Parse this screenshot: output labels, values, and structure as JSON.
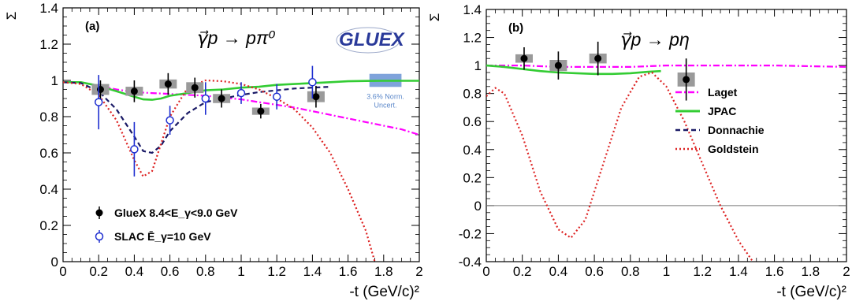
{
  "chart_data": [
    {
      "type": "scatter",
      "panel_label": "(a)",
      "reaction": "γ⃗p → pπ⁰",
      "logo_text": "GLUEX",
      "xlabel": "-t (GeV/c)²",
      "ylabel": "Σ",
      "xlim": [
        0,
        2
      ],
      "ylim": [
        0,
        1.4
      ],
      "x_ticks": [
        "0",
        "0.2",
        "0.4",
        "0.6",
        "0.8",
        "1",
        "1.2",
        "1.4",
        "1.6",
        "1.8",
        "2"
      ],
      "y_ticks": [
        "0",
        "0.2",
        "0.4",
        "0.6",
        "0.8",
        "1",
        "1.2",
        "1.4"
      ],
      "normalization_band": {
        "label_line1": "3.6% Norm.",
        "label_line2": "Uncert.",
        "value": 1.0,
        "uncertainty": 0.036,
        "x_range": [
          1.72,
          1.9
        ],
        "color": "#7fa3db"
      },
      "legend": [
        {
          "label": "GlueX 8.4<E_γ<9.0 GeV",
          "marker": "filled-circle"
        },
        {
          "label": "SLAC Ē_γ=10 GeV",
          "marker": "open-circle"
        }
      ],
      "series": [
        {
          "name": "GlueX 8.4<E_γ<9.0 GeV",
          "kind": "points",
          "marker": "filled",
          "points": [
            {
              "x": 0.21,
              "y": 0.95,
              "err": 0.05,
              "sys": 0.03
            },
            {
              "x": 0.4,
              "y": 0.94,
              "err": 0.06,
              "sys": 0.025
            },
            {
              "x": 0.59,
              "y": 0.98,
              "err": 0.06,
              "sys": 0.025
            },
            {
              "x": 0.74,
              "y": 0.96,
              "err": 0.055,
              "sys": 0.03
            },
            {
              "x": 0.89,
              "y": 0.9,
              "err": 0.05,
              "sys": 0.025
            },
            {
              "x": 1.11,
              "y": 0.83,
              "err": 0.04,
              "sys": 0.02
            },
            {
              "x": 1.42,
              "y": 0.91,
              "err": 0.06,
              "sys": 0.03
            }
          ]
        },
        {
          "name": "SLAC Ē_γ=10 GeV",
          "kind": "points",
          "marker": "open",
          "points": [
            {
              "x": 0.2,
              "y": 0.88,
              "err": 0.15
            },
            {
              "x": 0.4,
              "y": 0.62,
              "err": 0.15
            },
            {
              "x": 0.6,
              "y": 0.78,
              "err": 0.08
            },
            {
              "x": 0.8,
              "y": 0.9,
              "err": 0.09
            },
            {
              "x": 1.0,
              "y": 0.93,
              "err": 0.06
            },
            {
              "x": 1.2,
              "y": 0.91,
              "err": 0.07
            },
            {
              "x": 1.4,
              "y": 0.99,
              "err": 0.09
            }
          ]
        },
        {
          "name": "Laget",
          "kind": "curve",
          "color": "#ff00ff",
          "style": "dashdot",
          "points": [
            [
              0,
              0.99
            ],
            [
              0.1,
              0.99
            ],
            [
              0.2,
              0.97
            ],
            [
              0.3,
              0.95
            ],
            [
              0.4,
              0.935
            ],
            [
              0.5,
              0.93
            ],
            [
              0.6,
              0.925
            ],
            [
              0.7,
              0.92
            ],
            [
              0.8,
              0.915
            ],
            [
              0.9,
              0.905
            ],
            [
              1.0,
              0.895
            ],
            [
              1.1,
              0.88
            ],
            [
              1.2,
              0.865
            ],
            [
              1.3,
              0.85
            ],
            [
              1.4,
              0.83
            ],
            [
              1.5,
              0.81
            ],
            [
              1.6,
              0.79
            ],
            [
              1.7,
              0.77
            ],
            [
              1.8,
              0.75
            ],
            [
              1.9,
              0.73
            ],
            [
              2.0,
              0.7
            ]
          ]
        },
        {
          "name": "JPAC",
          "kind": "curve",
          "color": "#33cc33",
          "style": "solid",
          "points": [
            [
              0,
              0.99
            ],
            [
              0.1,
              0.99
            ],
            [
              0.2,
              0.97
            ],
            [
              0.3,
              0.94
            ],
            [
              0.4,
              0.91
            ],
            [
              0.45,
              0.895
            ],
            [
              0.5,
              0.893
            ],
            [
              0.55,
              0.9
            ],
            [
              0.6,
              0.915
            ],
            [
              0.7,
              0.93
            ],
            [
              0.8,
              0.945
            ],
            [
              0.9,
              0.95
            ],
            [
              1.0,
              0.96
            ],
            [
              1.1,
              0.965
            ],
            [
              1.2,
              0.975
            ],
            [
              1.3,
              0.98
            ],
            [
              1.4,
              0.985
            ],
            [
              1.5,
              0.99
            ],
            [
              1.6,
              0.995
            ],
            [
              1.7,
              0.997
            ],
            [
              1.8,
              0.998
            ],
            [
              1.9,
              0.998
            ],
            [
              2.0,
              0.998
            ]
          ]
        },
        {
          "name": "Donnachie",
          "kind": "curve",
          "color": "#1a1a66",
          "style": "dashed",
          "points": [
            [
              0,
              0.99
            ],
            [
              0.1,
              0.985
            ],
            [
              0.2,
              0.94
            ],
            [
              0.3,
              0.84
            ],
            [
              0.4,
              0.69
            ],
            [
              0.45,
              0.61
            ],
            [
              0.5,
              0.6
            ],
            [
              0.55,
              0.64
            ],
            [
              0.6,
              0.72
            ],
            [
              0.7,
              0.82
            ],
            [
              0.8,
              0.88
            ],
            [
              0.9,
              0.9
            ],
            [
              1.0,
              0.92
            ],
            [
              1.1,
              0.935
            ],
            [
              1.2,
              0.945
            ],
            [
              1.3,
              0.955
            ],
            [
              1.4,
              0.96
            ],
            [
              1.5,
              0.965
            ]
          ]
        },
        {
          "name": "Goldstein",
          "kind": "curve",
          "color": "#dd2222",
          "style": "dotted",
          "points": [
            [
              0,
              0.99
            ],
            [
              0.1,
              0.98
            ],
            [
              0.2,
              0.92
            ],
            [
              0.3,
              0.78
            ],
            [
              0.4,
              0.56
            ],
            [
              0.45,
              0.47
            ],
            [
              0.5,
              0.5
            ],
            [
              0.6,
              0.8
            ],
            [
              0.7,
              0.96
            ],
            [
              0.8,
              1.0
            ],
            [
              0.9,
              0.995
            ],
            [
              1.0,
              0.98
            ],
            [
              1.1,
              0.95
            ],
            [
              1.2,
              0.9
            ],
            [
              1.3,
              0.84
            ],
            [
              1.4,
              0.74
            ],
            [
              1.5,
              0.6
            ],
            [
              1.6,
              0.4
            ],
            [
              1.7,
              0.17
            ],
            [
              1.75,
              0
            ]
          ]
        }
      ]
    },
    {
      "type": "scatter",
      "panel_label": "(b)",
      "reaction": "γ⃗p → pη",
      "xlabel": "-t (GeV/c)²",
      "ylabel": "Σ",
      "xlim": [
        0,
        2
      ],
      "ylim": [
        -0.4,
        1.4
      ],
      "x_ticks": [
        "0",
        "0.2",
        "0.4",
        "0.6",
        "0.8",
        "1",
        "1.2",
        "1.4",
        "1.6",
        "1.8",
        "2"
      ],
      "y_ticks": [
        "-0.4",
        "-0.2",
        "0",
        "0.2",
        "0.4",
        "0.6",
        "0.8",
        "1",
        "1.2",
        "1.4"
      ],
      "legend": [
        {
          "label": "Laget",
          "color": "#ff00ff",
          "style": "dashdot"
        },
        {
          "label": "JPAC",
          "color": "#33cc33",
          "style": "solid"
        },
        {
          "label": "Donnachie",
          "color": "#1a1a66",
          "style": "dashed"
        },
        {
          "label": "Goldstein",
          "color": "#dd2222",
          "style": "dotted"
        }
      ],
      "series": [
        {
          "name": "GlueX",
          "kind": "points",
          "marker": "filled",
          "points": [
            {
              "x": 0.21,
              "y": 1.05,
              "err": 0.08,
              "sys": 0.03
            },
            {
              "x": 0.4,
              "y": 1.0,
              "err": 0.1,
              "sys": 0.04
            },
            {
              "x": 0.62,
              "y": 1.05,
              "err": 0.12,
              "sys": 0.035
            },
            {
              "x": 1.11,
              "y": 0.9,
              "err": 0.15,
              "sys": 0.05
            }
          ]
        },
        {
          "name": "Laget",
          "kind": "curve",
          "color": "#ff00ff",
          "style": "dashdot",
          "points": [
            [
              0,
              1.0
            ],
            [
              0.2,
              1.0
            ],
            [
              0.4,
              0.99
            ],
            [
              0.6,
              0.99
            ],
            [
              0.8,
              0.99
            ],
            [
              1.0,
              1.0
            ],
            [
              1.2,
              1.0
            ],
            [
              1.4,
              1.0
            ],
            [
              1.6,
              1.0
            ],
            [
              1.8,
              0.995
            ],
            [
              2.0,
              0.99
            ]
          ]
        },
        {
          "name": "JPAC",
          "kind": "curve",
          "color": "#33cc33",
          "style": "solid",
          "points": [
            [
              0,
              1.0
            ],
            [
              0.1,
              0.99
            ],
            [
              0.2,
              0.975
            ],
            [
              0.3,
              0.96
            ],
            [
              0.4,
              0.95
            ],
            [
              0.5,
              0.945
            ],
            [
              0.6,
              0.94
            ],
            [
              0.7,
              0.94
            ],
            [
              0.8,
              0.945
            ],
            [
              0.9,
              0.955
            ],
            [
              0.97,
              0.96
            ]
          ]
        },
        {
          "name": "Goldstein",
          "kind": "curve",
          "color": "#dd2222",
          "style": "dotted",
          "points": [
            [
              0,
              0.78
            ],
            [
              0.05,
              0.84
            ],
            [
              0.1,
              0.8
            ],
            [
              0.2,
              0.5
            ],
            [
              0.3,
              0.1
            ],
            [
              0.4,
              -0.17
            ],
            [
              0.47,
              -0.23
            ],
            [
              0.55,
              -0.1
            ],
            [
              0.65,
              0.3
            ],
            [
              0.75,
              0.7
            ],
            [
              0.85,
              0.92
            ],
            [
              0.92,
              0.95
            ],
            [
              1.0,
              0.85
            ],
            [
              1.1,
              0.6
            ],
            [
              1.2,
              0.3
            ],
            [
              1.3,
              0.0
            ],
            [
              1.4,
              -0.25
            ],
            [
              1.48,
              -0.4
            ]
          ]
        }
      ]
    }
  ]
}
